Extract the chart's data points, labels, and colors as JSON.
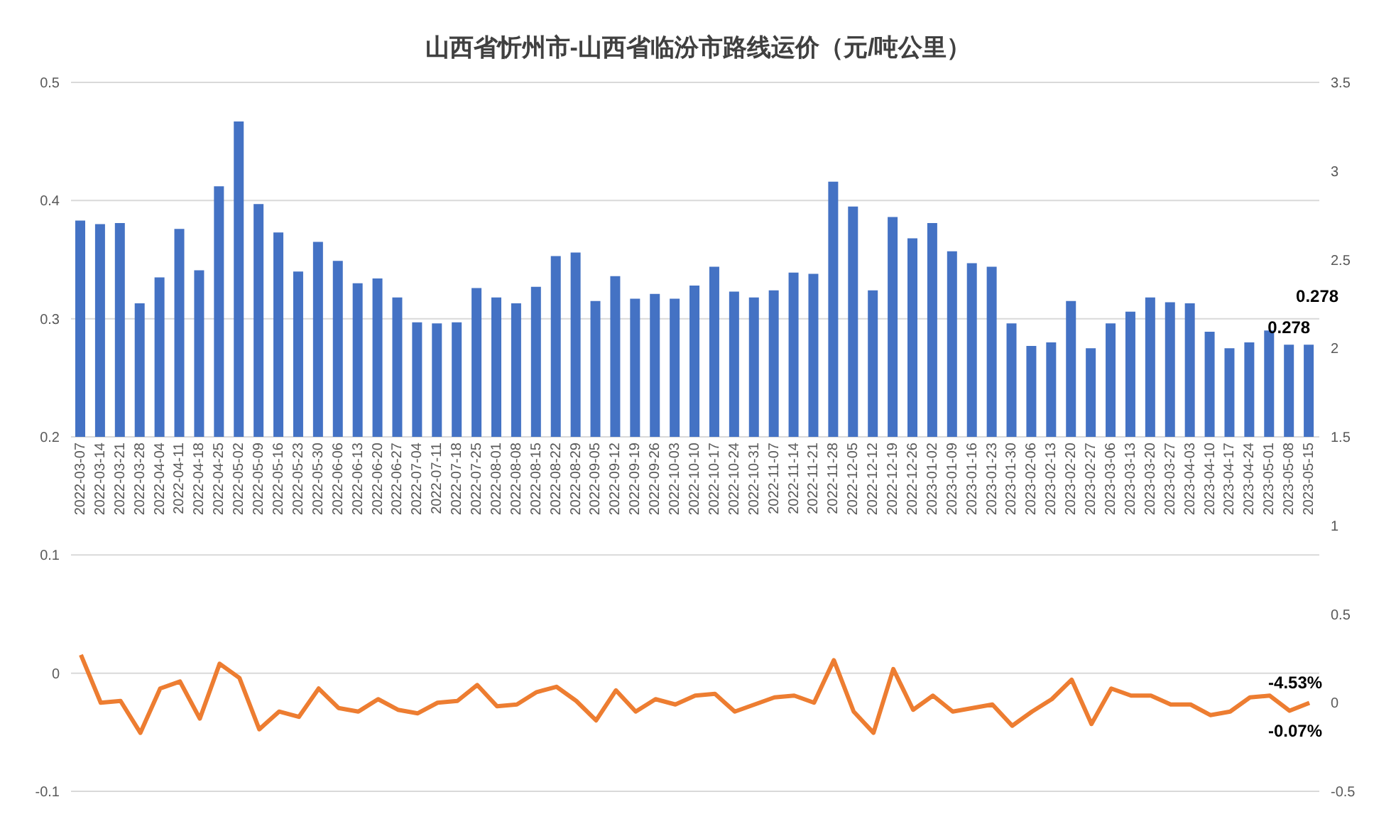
{
  "chart_data": {
    "type": "bar",
    "title": "山西省忻州市-山西省临汾市路线运价（元/吨公里）",
    "categories": [
      "2022-03-07",
      "2022-03-14",
      "2022-03-21",
      "2022-03-28",
      "2022-04-04",
      "2022-04-11",
      "2022-04-18",
      "2022-04-25",
      "2022-05-02",
      "2022-05-09",
      "2022-05-16",
      "2022-05-23",
      "2022-05-30",
      "2022-06-06",
      "2022-06-13",
      "2022-06-20",
      "2022-06-27",
      "2022-07-04",
      "2022-07-11",
      "2022-07-18",
      "2022-07-25",
      "2022-08-01",
      "2022-08-08",
      "2022-08-15",
      "2022-08-22",
      "2022-08-29",
      "2022-09-05",
      "2022-09-12",
      "2022-09-19",
      "2022-09-26",
      "2022-10-03",
      "2022-10-10",
      "2022-10-17",
      "2022-10-24",
      "2022-10-31",
      "2022-11-07",
      "2022-11-14",
      "2022-11-21",
      "2022-11-28",
      "2022-12-05",
      "2022-12-12",
      "2022-12-19",
      "2022-12-26",
      "2023-01-02",
      "2023-01-09",
      "2023-01-16",
      "2023-01-23",
      "2023-01-30",
      "2023-02-06",
      "2023-02-13",
      "2023-02-20",
      "2023-02-27",
      "2023-03-06",
      "2023-03-13",
      "2023-03-20",
      "2023-03-27",
      "2023-04-03",
      "2023-04-10",
      "2023-04-17",
      "2023-04-24",
      "2023-05-01",
      "2023-05-08",
      "2023-05-15"
    ],
    "series": [
      {
        "color": "#4472c4",
        "base": [
          0.2,
          0.2,
          0.2,
          0.2,
          0.2,
          0.2,
          0.2,
          0.2,
          0.2,
          0.2,
          0.2,
          0.2,
          0.2,
          0.2,
          0.2,
          0.2,
          0.2,
          0.2,
          0.2,
          0.2,
          0.2,
          0.2,
          0.2,
          0.2,
          0.2,
          0.2,
          0.2,
          0.2,
          0.2,
          0.2,
          0.2,
          0.2,
          0.2,
          0.2,
          0.2,
          0.2,
          0.2,
          0.2,
          0.2,
          0.2,
          0.2,
          0.2,
          0.2,
          0.2,
          0.2,
          0.2,
          0.2,
          0.2,
          0.2,
          0.2,
          0.2,
          0.2,
          0.2,
          0.2,
          0.2,
          0.2,
          0.2,
          0.2,
          0.2,
          0.2,
          0.2,
          0.2,
          0.2
        ],
        "values": [
          0.183,
          0.18,
          0.181,
          0.113,
          0.135,
          0.176,
          0.141,
          0.212,
          0.267,
          0.197,
          0.173,
          0.14,
          0.165,
          0.149,
          0.13,
          0.134,
          0.118,
          0.097,
          0.096,
          0.097,
          0.126,
          0.118,
          0.113,
          0.127,
          0.153,
          0.156,
          0.115,
          0.136,
          0.117,
          0.121,
          0.117,
          0.128,
          0.144,
          0.123,
          0.118,
          0.124,
          0.139,
          0.138,
          0.216,
          0.195,
          0.124,
          0.186,
          0.168,
          0.181,
          0.157,
          0.147,
          0.144,
          0.096,
          0.077,
          0.08,
          0.115,
          0.075,
          0.096,
          0.106,
          0.118,
          0.114,
          0.113,
          0.089,
          0.075,
          0.08,
          0.09,
          0.078,
          0.078
        ],
        "value_labels": [
          null,
          null,
          null,
          null,
          null,
          null,
          null,
          null,
          null,
          null,
          null,
          null,
          null,
          null,
          null,
          null,
          null,
          null,
          null,
          null,
          null,
          null,
          null,
          null,
          null,
          null,
          null,
          null,
          null,
          null,
          null,
          null,
          null,
          null,
          null,
          null,
          null,
          null,
          null,
          null,
          null,
          null,
          null,
          null,
          null,
          null,
          null,
          null,
          null,
          null,
          null,
          null,
          null,
          null,
          null,
          null,
          null,
          null,
          null,
          null,
          null,
          "0.278",
          "0.278"
        ]
      },
      {
        "type": "line",
        "axis": "y2",
        "color": "#ed7d31",
        "values": [
          0.27,
          0,
          0.01,
          -0.17,
          0.08,
          0.12,
          -0.09,
          0.22,
          0.14,
          -0.15,
          -0.05,
          -0.08,
          0.08,
          -0.03,
          -0.05,
          0.02,
          -0.04,
          -0.06,
          0,
          0.01,
          0.1,
          -0.02,
          -0.01,
          0.06,
          0.09,
          0.01,
          -0.1,
          0.07,
          -0.05,
          0.02,
          -0.01,
          0.04,
          0.05,
          -0.05,
          -0.01,
          0.03,
          0.04,
          0,
          0.24,
          -0.05,
          -0.17,
          0.19,
          -0.04,
          0.04,
          -0.05,
          -0.03,
          -0.01,
          -0.13,
          -0.05,
          0.02,
          0.13,
          -0.12,
          0.08,
          0.04,
          0.04,
          -0.01,
          -0.01,
          -0.07,
          -0.05,
          0.03,
          0.04,
          -0.0453,
          -0.0007
        ],
        "value_labels": [
          null,
          null,
          null,
          null,
          null,
          null,
          null,
          null,
          null,
          null,
          null,
          null,
          null,
          null,
          null,
          null,
          null,
          null,
          null,
          null,
          null,
          null,
          null,
          null,
          null,
          null,
          null,
          null,
          null,
          null,
          null,
          null,
          null,
          null,
          null,
          null,
          null,
          null,
          null,
          null,
          null,
          null,
          null,
          null,
          null,
          null,
          null,
          null,
          null,
          null,
          null,
          null,
          null,
          null,
          null,
          null,
          null,
          null,
          null,
          null,
          null,
          "-4.53%",
          "-0.07%"
        ]
      }
    ],
    "ylim": [
      -0.1,
      0.5
    ],
    "yticks": [
      -0.1,
      0,
      0.1,
      0.2,
      0.3,
      0.4,
      0.5
    ],
    "y2lim": [
      -0.5,
      3.5
    ],
    "y2ticks": [
      -0.5,
      0,
      0.5,
      1,
      1.5,
      2,
      2.5,
      3,
      3.5
    ],
    "grid": "y"
  }
}
